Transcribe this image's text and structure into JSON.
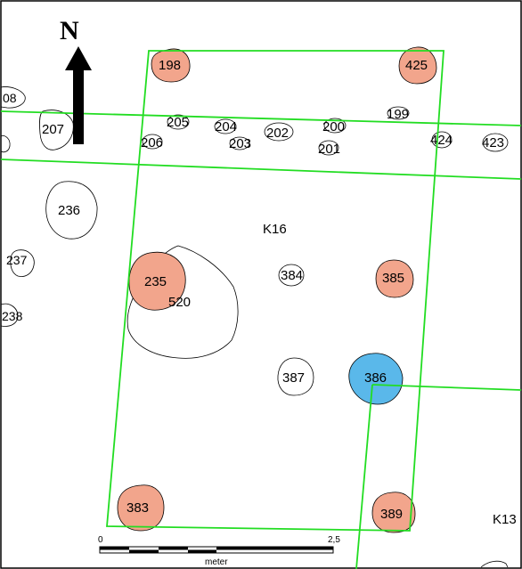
{
  "north_arrow": {
    "label": "N"
  },
  "trenches": [
    {
      "label": "K16"
    },
    {
      "label": "K13"
    }
  ],
  "features": [
    {
      "id": "208",
      "label": "08",
      "kind": "outline"
    },
    {
      "id": "207",
      "label": "207",
      "kind": "outline"
    },
    {
      "id": "198",
      "label": "198",
      "kind": "red"
    },
    {
      "id": "425",
      "label": "425",
      "kind": "red"
    },
    {
      "id": "205",
      "label": "205",
      "kind": "outline"
    },
    {
      "id": "204",
      "label": "204",
      "kind": "outline"
    },
    {
      "id": "202",
      "label": "202",
      "kind": "outline"
    },
    {
      "id": "200",
      "label": "200",
      "kind": "outline"
    },
    {
      "id": "199",
      "label": "199",
      "kind": "outline"
    },
    {
      "id": "206",
      "label": "206",
      "kind": "outline"
    },
    {
      "id": "203",
      "label": "203",
      "kind": "outline"
    },
    {
      "id": "201",
      "label": "201",
      "kind": "outline"
    },
    {
      "id": "424",
      "label": "424",
      "kind": "outline"
    },
    {
      "id": "423",
      "label": "423",
      "kind": "outline"
    },
    {
      "id": "236",
      "label": "236",
      "kind": "outline"
    },
    {
      "id": "237",
      "label": "237",
      "kind": "outline"
    },
    {
      "id": "235",
      "label": "235",
      "kind": "red"
    },
    {
      "id": "520",
      "label": "520",
      "kind": "outline"
    },
    {
      "id": "384",
      "label": "384",
      "kind": "outline"
    },
    {
      "id": "385",
      "label": "385",
      "kind": "red"
    },
    {
      "id": "238",
      "label": "238",
      "kind": "outline"
    },
    {
      "id": "387",
      "label": "387",
      "kind": "outline"
    },
    {
      "id": "386",
      "label": "386",
      "kind": "blue"
    },
    {
      "id": "383",
      "label": "383",
      "kind": "red"
    },
    {
      "id": "389",
      "label": "389",
      "kind": "red"
    }
  ],
  "scale_bar": {
    "start_label": "0",
    "end_label": "2,5",
    "unit": "meter"
  },
  "colors": {
    "red_fill": "#f2a58c",
    "blue_fill": "#5ab8ea",
    "trench_line": "#22dd22"
  }
}
